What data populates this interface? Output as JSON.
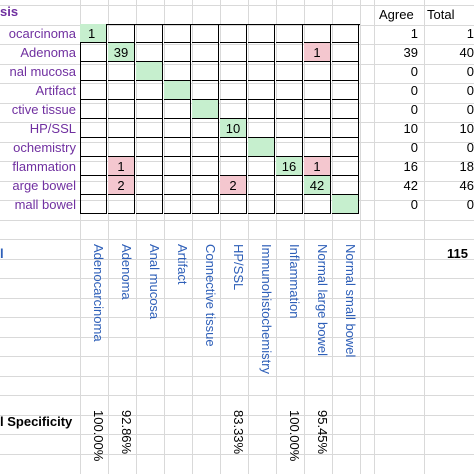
{
  "header": {
    "col_label": "sis",
    "agree": "Agree",
    "total": "Total"
  },
  "rows": [
    {
      "label": "ocarcinoma",
      "cells": [
        {
          "c": 0,
          "v": "1",
          "k": "g"
        }
      ],
      "agree": "1",
      "total": "1"
    },
    {
      "label": "Adenoma",
      "cells": [
        {
          "c": 1,
          "v": "39",
          "k": "g"
        },
        {
          "c": 8,
          "v": "1",
          "k": "r"
        }
      ],
      "agree": "39",
      "total": "40"
    },
    {
      "label": "nal mucosa",
      "cells": [
        {
          "c": 2,
          "v": "",
          "k": "g"
        }
      ],
      "agree": "0",
      "total": "0"
    },
    {
      "label": "Artifact",
      "cells": [
        {
          "c": 3,
          "v": "",
          "k": "g"
        }
      ],
      "agree": "0",
      "total": "0"
    },
    {
      "label": "ctive tissue",
      "cells": [
        {
          "c": 4,
          "v": "",
          "k": "g"
        }
      ],
      "agree": "0",
      "total": "0"
    },
    {
      "label": "HP/SSL",
      "cells": [
        {
          "c": 5,
          "v": "10",
          "k": "g"
        }
      ],
      "agree": "10",
      "total": "10"
    },
    {
      "label": "ochemistry",
      "cells": [
        {
          "c": 6,
          "v": "",
          "k": "g"
        }
      ],
      "agree": "0",
      "total": "0"
    },
    {
      "label": "flammation",
      "cells": [
        {
          "c": 1,
          "v": "1",
          "k": "r"
        },
        {
          "c": 7,
          "v": "16",
          "k": "g"
        },
        {
          "c": 8,
          "v": "1",
          "k": "r"
        }
      ],
      "agree": "16",
      "total": "18"
    },
    {
      "label": "arge bowel",
      "cells": [
        {
          "c": 1,
          "v": "2",
          "k": "r"
        },
        {
          "c": 5,
          "v": "2",
          "k": "r"
        },
        {
          "c": 8,
          "v": "42",
          "k": "g"
        }
      ],
      "agree": "42",
      "total": "46"
    },
    {
      "label": "mall bowel",
      "cells": [
        {
          "c": 9,
          "v": "",
          "k": "g"
        }
      ],
      "agree": "0",
      "total": "0"
    }
  ],
  "summary_row": {
    "label": "l",
    "total": "115"
  },
  "columns": [
    "Adenocarcinoma",
    "Adenoma",
    "Anal mucosa",
    "Artifact",
    "Connective tissue",
    "HP/SSL",
    "Immunohistochemistry",
    "Inflammation",
    "Normal large bowel",
    "Normal small bowel"
  ],
  "specificity": {
    "label": "l Specificity",
    "values": [
      "100.00%",
      "92.86%",
      "",
      "",
      "",
      "83.33%",
      "",
      "100.00%",
      "95.45%",
      ""
    ]
  },
  "colors": {
    "green": "#c6efce",
    "red": "#f4c7cf",
    "label_purple": "#7030a0",
    "label_blue": "#2e5fb8"
  }
}
